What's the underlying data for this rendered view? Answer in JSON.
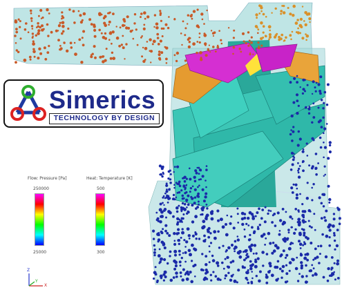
{
  "logo": {
    "name": "Simerics",
    "tagline": "TECHNOLOGY BY DESIGN"
  },
  "legends": [
    {
      "title": "Flow: Pressure [Pa]",
      "max_label": "250000",
      "min_label": "25000",
      "colors": [
        "#ff00ff",
        "#ff0000",
        "#ffff00",
        "#00ff00",
        "#00ffff",
        "#0000ff"
      ]
    },
    {
      "title": "Heat: Temperature [K]",
      "max_label": "500",
      "min_label": "300",
      "colors": [
        "#ff00ff",
        "#ff0000",
        "#ffff00",
        "#00ff00",
        "#00ffff",
        "#0000ff"
      ]
    }
  ],
  "triad": {
    "z": "Z",
    "y": "Y",
    "x": "X"
  },
  "scene_colors": {
    "fluid": "#9fd6d4",
    "blade": "#33c7b8",
    "top_blade": "#d733d0",
    "hub": "#e39a2e",
    "particle_hot": "#c85a28",
    "particle_cold": "#1a2aa8"
  }
}
